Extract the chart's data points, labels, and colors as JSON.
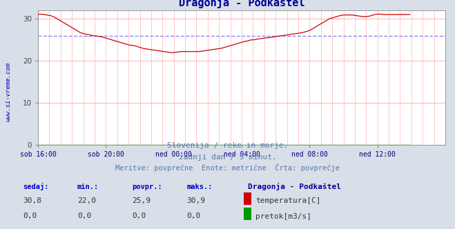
{
  "title": "Dragonja - Podkaštel",
  "bg_color": "#d8dfe8",
  "plot_bg_color": "#ffffff",
  "grid_color": "#ffb0b0",
  "x_labels": [
    "sob 16:00",
    "sob 20:00",
    "ned 00:00",
    "ned 04:00",
    "ned 08:00",
    "ned 12:00"
  ],
  "x_ticks_pos": [
    0,
    48,
    96,
    144,
    192,
    240
  ],
  "x_max": 288,
  "ylim": [
    0,
    32
  ],
  "yticks": [
    0,
    10,
    20,
    30
  ],
  "avg_line_y": 25.9,
  "avg_line_color": "#8888ff",
  "temp_color": "#cc0000",
  "flow_color": "#009900",
  "watermark": "www.si-vreme.com",
  "subtitle1": "Slovenija / reke in morje.",
  "subtitle2": "zadnji dan / 5 minut.",
  "subtitle3": "Meritve: povprečne  Enote: metrične  Črta: povprečje",
  "stats_headers": [
    "sedaj:",
    "min.:",
    "povpr.:",
    "maks.:"
  ],
  "stats_temp": [
    "30,8",
    "22,0",
    "25,9",
    "30,9"
  ],
  "stats_flow": [
    "0,0",
    "0,0",
    "0,0",
    "0,0"
  ],
  "legend_title": "Dragonja - Podkaštel",
  "legend_temp": "temperatura[C]",
  "legend_flow": "pretok[m3/s]",
  "arrow_color": "#cc0000",
  "temp_curve": [
    31.0,
    31.1,
    31.1,
    31.05,
    31.0,
    31.0,
    30.9,
    30.85,
    30.8,
    30.75,
    30.6,
    30.5,
    30.3,
    30.1,
    29.9,
    29.7,
    29.5,
    29.3,
    29.1,
    28.9,
    28.7,
    28.5,
    28.3,
    28.1,
    27.9,
    27.7,
    27.5,
    27.3,
    27.1,
    26.9,
    26.7,
    26.6,
    26.5,
    26.4,
    26.3,
    26.25,
    26.2,
    26.1,
    26.05,
    26.0,
    25.95,
    25.9,
    25.85,
    25.8,
    25.75,
    25.7,
    25.6,
    25.5,
    25.4,
    25.3,
    25.2,
    25.1,
    25.0,
    24.9,
    24.8,
    24.7,
    24.6,
    24.5,
    24.4,
    24.3,
    24.2,
    24.1,
    24.0,
    23.9,
    23.8,
    23.75,
    23.7,
    23.65,
    23.6,
    23.5,
    23.4,
    23.3,
    23.2,
    23.1,
    23.0,
    22.9,
    22.85,
    22.8,
    22.75,
    22.7,
    22.65,
    22.6,
    22.55,
    22.5,
    22.45,
    22.4,
    22.35,
    22.3,
    22.25,
    22.2,
    22.15,
    22.1,
    22.05,
    22.0,
    21.95,
    21.9,
    21.95,
    22.0,
    22.05,
    22.1,
    22.15,
    22.2,
    22.2,
    22.2,
    22.2,
    22.2,
    22.2,
    22.2,
    22.2,
    22.2,
    22.2,
    22.2,
    22.2,
    22.2,
    22.2,
    22.25,
    22.3,
    22.35,
    22.4,
    22.45,
    22.5,
    22.55,
    22.6,
    22.65,
    22.7,
    22.75,
    22.8,
    22.85,
    22.9,
    22.95,
    23.0,
    23.1,
    23.2,
    23.3,
    23.4,
    23.5,
    23.6,
    23.7,
    23.8,
    23.9,
    24.0,
    24.1,
    24.2,
    24.3,
    24.4,
    24.5,
    24.6,
    24.65,
    24.7,
    24.8,
    24.9,
    25.0,
    25.0,
    25.0,
    25.1,
    25.15,
    25.2,
    25.25,
    25.3,
    25.35,
    25.4,
    25.45,
    25.5,
    25.5,
    25.55,
    25.6,
    25.65,
    25.7,
    25.75,
    25.8,
    25.85,
    25.9,
    25.95,
    26.0,
    26.05,
    26.1,
    26.15,
    26.2,
    26.25,
    26.3,
    26.35,
    26.4,
    26.45,
    26.5,
    26.55,
    26.6,
    26.65,
    26.7,
    26.8,
    26.9,
    27.0,
    27.1,
    27.2,
    27.4,
    27.6,
    27.8,
    28.0,
    28.2,
    28.4,
    28.6,
    28.8,
    29.0,
    29.2,
    29.4,
    29.6,
    29.8,
    30.0,
    30.1,
    30.2,
    30.3,
    30.4,
    30.5,
    30.6,
    30.7,
    30.8,
    30.85,
    30.9,
    30.9,
    30.9,
    30.9,
    30.9,
    30.9,
    30.9,
    30.85,
    30.8,
    30.75,
    30.7,
    30.65,
    30.6,
    30.55,
    30.5,
    30.5,
    30.5,
    30.55,
    30.6,
    30.7,
    30.8,
    30.9,
    31.0,
    31.05,
    31.1,
    31.1,
    31.1,
    31.05,
    31.0,
    31.0,
    31.0,
    31.0,
    31.0,
    31.0,
    31.0,
    31.0,
    31.0,
    31.0,
    31.0,
    31.0,
    31.0,
    31.0,
    31.0,
    31.0,
    31.0,
    31.0,
    31.0,
    31.0
  ]
}
